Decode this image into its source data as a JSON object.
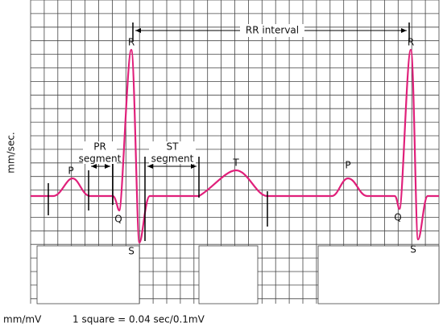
{
  "labels": {
    "p1": "P",
    "q1": "Q",
    "r1": "R",
    "s1": "S",
    "t": "T",
    "p2": "P",
    "q2": "Q",
    "r2": "R",
    "s2": "S"
  },
  "intervals": {
    "rr": "RR interval",
    "pr": [
      "PR",
      "segment"
    ],
    "st": [
      "ST",
      "segment"
    ]
  },
  "axis": {
    "left": "mm/sec.",
    "bottom_left": "mm/mV",
    "scale": "1 square = 0.04 sec/0.1mV"
  }
}
